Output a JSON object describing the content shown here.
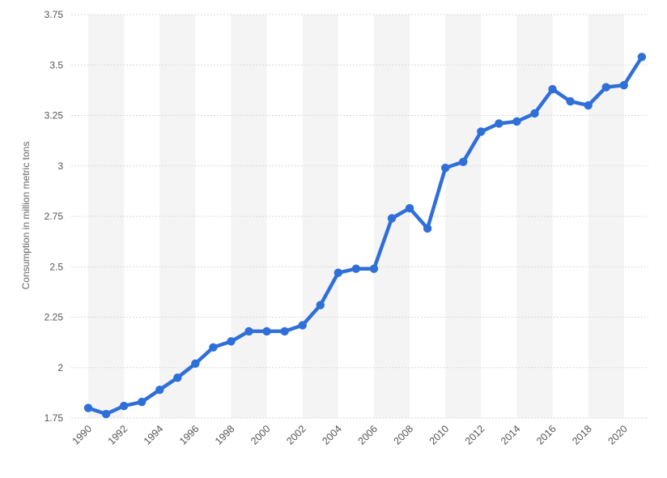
{
  "chart_data": {
    "type": "line",
    "title": "",
    "xlabel": "",
    "ylabel": "Consumption in million metric tons",
    "x": [
      1990,
      1991,
      1992,
      1993,
      1994,
      1995,
      1996,
      1997,
      1998,
      1999,
      2000,
      2001,
      2002,
      2003,
      2004,
      2005,
      2006,
      2007,
      2008,
      2009,
      2010,
      2011,
      2012,
      2013,
      2014,
      2015,
      2016,
      2017,
      2018,
      2019,
      2020,
      2021
    ],
    "series": [
      {
        "values": [
          1.8,
          1.77,
          1.81,
          1.83,
          1.89,
          1.95,
          2.02,
          2.1,
          2.13,
          2.18,
          2.18,
          2.18,
          2.21,
          2.31,
          2.47,
          2.49,
          2.49,
          2.74,
          2.79,
          2.69,
          2.99,
          3.02,
          3.17,
          3.21,
          3.22,
          3.26,
          3.38,
          3.32,
          3.3,
          3.39,
          3.4,
          3.54
        ]
      }
    ],
    "x_tick_labels": [
      "1990",
      "1992",
      "1994",
      "1996",
      "1998",
      "2000",
      "2002",
      "2004",
      "2006",
      "2008",
      "2010",
      "2012",
      "2014",
      "2016",
      "2018",
      "2020"
    ],
    "y_tick_labels": [
      "1.75",
      "2",
      "2.25",
      "2.5",
      "2.75",
      "3",
      "3.25",
      "3.5",
      "3.75"
    ],
    "ylim": [
      1.75,
      3.75
    ],
    "y_ticks": [
      1.75,
      2,
      2.25,
      2.5,
      2.75,
      3,
      3.25,
      3.5,
      3.75
    ],
    "grid": true,
    "alternating_column_bands": true,
    "line_color": "#2f6fd8",
    "band_color": "#f4f4f4",
    "grid_color": "#d9d9d9"
  }
}
